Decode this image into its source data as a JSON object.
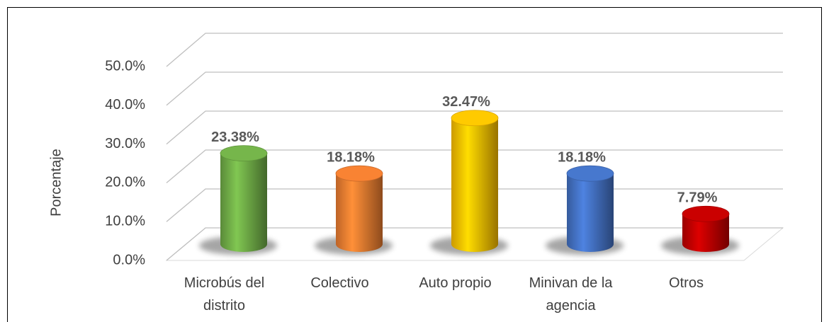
{
  "chart_data": {
    "type": "bar3d",
    "y_label": "Porcentaje",
    "categories": [
      "Microbús del distrito",
      "Colectivo",
      "Auto propio",
      "Minivan de la agencia",
      "Otros"
    ],
    "values": [
      23.38,
      18.18,
      32.47,
      18.18,
      7.79
    ],
    "value_labels": [
      "23.38%",
      "18.18%",
      "32.47%",
      "18.18%",
      "7.79%"
    ],
    "colors": [
      "#70ad47",
      "#ed7d31",
      "#ffc000",
      "#4472c4",
      "#c00000"
    ],
    "ylim": [
      0,
      50
    ],
    "yticks": [
      {
        "value": 0,
        "label": "0.0%"
      },
      {
        "value": 10,
        "label": "10.0%"
      },
      {
        "value": 20,
        "label": "20.0%"
      },
      {
        "value": 30,
        "label": "30.0%"
      },
      {
        "value": 40,
        "label": "40.0%"
      },
      {
        "value": 50,
        "label": "50.0%"
      }
    ],
    "grid": true
  }
}
